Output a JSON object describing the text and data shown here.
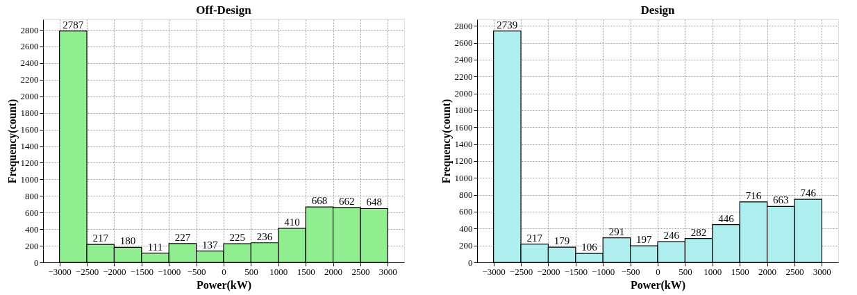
{
  "chart_data": [
    {
      "type": "histogram",
      "title": "Off-Design",
      "xlabel": "Power(kW)",
      "ylabel": "Frequency(count)",
      "bins": [
        -3000,
        -2500,
        -2000,
        -1500,
        -1000,
        -500,
        0,
        500,
        1000,
        1500,
        2000,
        2500,
        3000
      ],
      "values": [
        2787,
        217,
        180,
        111,
        227,
        137,
        225,
        236,
        410,
        668,
        662,
        648
      ],
      "color": "#90ee90",
      "xlim": [
        -3300,
        3300
      ],
      "xticks": [
        -3000,
        -2500,
        -2000,
        -1500,
        -1000,
        -500,
        0,
        500,
        1000,
        1500,
        2000,
        2500,
        3000
      ],
      "ylim": [
        0,
        2926
      ],
      "yticks": [
        0,
        200,
        400,
        600,
        800,
        1000,
        1200,
        1400,
        1600,
        1800,
        2000,
        2200,
        2400,
        2600,
        2800
      ],
      "grid": true,
      "data_labels": true
    },
    {
      "type": "histogram",
      "title": "Design",
      "xlabel": "Power(kW)",
      "ylabel": "Frequency(count)",
      "bins": [
        -3000,
        -2500,
        -2000,
        -1500,
        -1000,
        -500,
        0,
        500,
        1000,
        1500,
        2000,
        2500,
        3000
      ],
      "values": [
        2739,
        217,
        179,
        106,
        291,
        197,
        246,
        282,
        446,
        716,
        663,
        746
      ],
      "color": "#afeeee",
      "xlim": [
        -3300,
        3300
      ],
      "xticks": [
        -3000,
        -2500,
        -2000,
        -1500,
        -1000,
        -500,
        0,
        500,
        1000,
        1500,
        2000,
        2500,
        3000
      ],
      "ylim": [
        0,
        2876
      ],
      "yticks": [
        0,
        200,
        400,
        600,
        800,
        1000,
        1200,
        1400,
        1600,
        1800,
        2000,
        2200,
        2400,
        2600,
        2800
      ],
      "grid": true,
      "data_labels": true
    }
  ]
}
